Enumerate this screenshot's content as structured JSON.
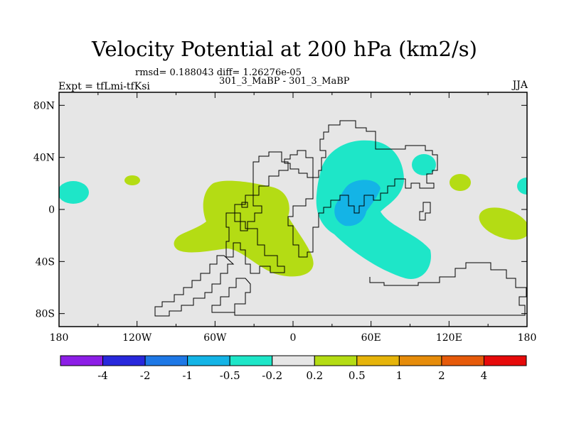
{
  "title": "Velocity Potential at 200 hPa (km2/s)",
  "subtitle_stats": "rmsd= 0.188043  diff= 1.26276e-05",
  "subtitle_cases": "301_3_MaBP - 301_3_MaBP",
  "left_label": "Expt = tfLmi-tfKsi",
  "right_label": "JJA",
  "map": {
    "lon_range": [
      -180,
      180
    ],
    "lat_range": [
      -90,
      90
    ],
    "lat_ticks": [
      {
        "value": 80,
        "label": "80N"
      },
      {
        "value": 40,
        "label": "40N"
      },
      {
        "value": 0,
        "label": "0"
      },
      {
        "value": -40,
        "label": "40S"
      },
      {
        "value": -80,
        "label": "80S"
      }
    ],
    "lon_ticks": [
      {
        "value": -180,
        "label": "180"
      },
      {
        "value": -120,
        "label": "120W"
      },
      {
        "value": -60,
        "label": "60W"
      },
      {
        "value": 0,
        "label": "0"
      },
      {
        "value": 60,
        "label": "60E"
      },
      {
        "value": 120,
        "label": "120E"
      },
      {
        "value": 180,
        "label": "180"
      }
    ],
    "background_color": "#e6e6e6"
  },
  "colorbar": {
    "colors": [
      "#8c1ee6",
      "#2828dc",
      "#1e78e6",
      "#14b4e6",
      "#1ee6c8",
      "#e6e6e6",
      "#b4dc14",
      "#e6b40a",
      "#e68c0a",
      "#e65a0a",
      "#e60a0a"
    ],
    "labels": [
      "-4",
      "-2",
      "-1",
      "-0.5",
      "-0.2",
      "0.2",
      "0.5",
      "1",
      "2",
      "4"
    ]
  },
  "legend_colors": {
    "positive_contour": "#b4dc14",
    "negative_contour": "#1ee6c8",
    "negative_strong": "#14b4e6"
  }
}
